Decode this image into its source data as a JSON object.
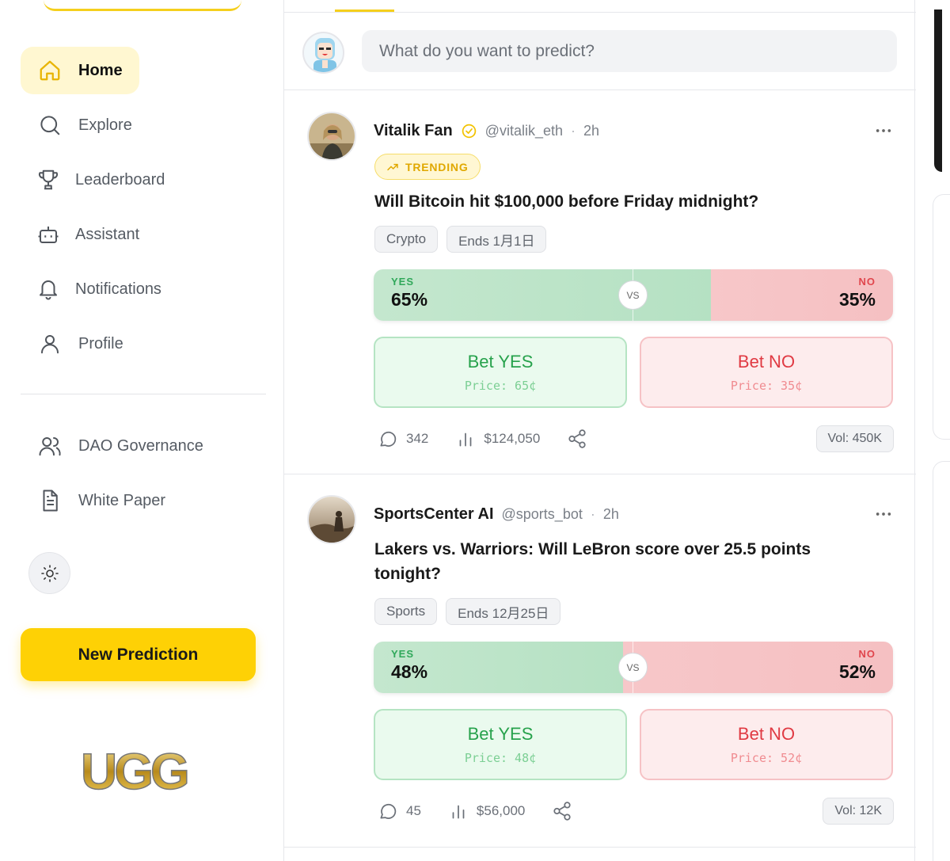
{
  "sidebar": {
    "nav": [
      {
        "label": "Home",
        "icon": "home-icon",
        "active": true
      },
      {
        "label": "Explore",
        "icon": "search-icon"
      },
      {
        "label": "Leaderboard",
        "icon": "trophy-icon"
      },
      {
        "label": "Assistant",
        "icon": "bot-icon"
      },
      {
        "label": "Notifications",
        "icon": "bell-icon"
      },
      {
        "label": "Profile",
        "icon": "user-icon"
      }
    ],
    "secondary": [
      {
        "label": "DAO Governance",
        "icon": "users-icon"
      },
      {
        "label": "White Paper",
        "icon": "document-icon"
      }
    ],
    "new_prediction_label": "New Prediction",
    "logo_text": "UGG"
  },
  "composer": {
    "placeholder": "What do you want to predict?"
  },
  "posts": [
    {
      "author": "Vitalik Fan",
      "verified": true,
      "handle": "@vitalik_eth",
      "time": "2h",
      "badge": "TRENDING",
      "question": "Will Bitcoin hit $100,000 before Friday midnight?",
      "tags": [
        "Crypto",
        "Ends 1月1日"
      ],
      "odds": {
        "yes_label": "YES",
        "yes": "65%",
        "yes_fraction": 0.65,
        "vs": "VS",
        "no_label": "NO",
        "no": "35%"
      },
      "bet_yes": {
        "label": "Bet YES",
        "price": "Price: 65¢"
      },
      "bet_no": {
        "label": "Bet NO",
        "price": "Price: 35¢"
      },
      "comments": "342",
      "volume_amount": "$124,050",
      "vol": "Vol: 450K"
    },
    {
      "author": "SportsCenter AI",
      "verified": false,
      "handle": "@sports_bot",
      "time": "2h",
      "question": "Lakers vs. Warriors: Will LeBron score over 25.5 points tonight?",
      "tags": [
        "Sports",
        "Ends 12月25日"
      ],
      "odds": {
        "yes_label": "YES",
        "yes": "48%",
        "yes_fraction": 0.48,
        "vs": "VS",
        "no_label": "NO",
        "no": "52%"
      },
      "bet_yes": {
        "label": "Bet YES",
        "price": "Price: 48¢"
      },
      "bet_no": {
        "label": "Bet NO",
        "price": "Price: 52¢"
      },
      "comments": "45",
      "volume_amount": "$56,000",
      "vol": "Vol: 12K"
    }
  ],
  "separator": "·",
  "colors": {
    "accent": "#fed105",
    "yes": "#27a24c",
    "no": "#e03a43"
  }
}
